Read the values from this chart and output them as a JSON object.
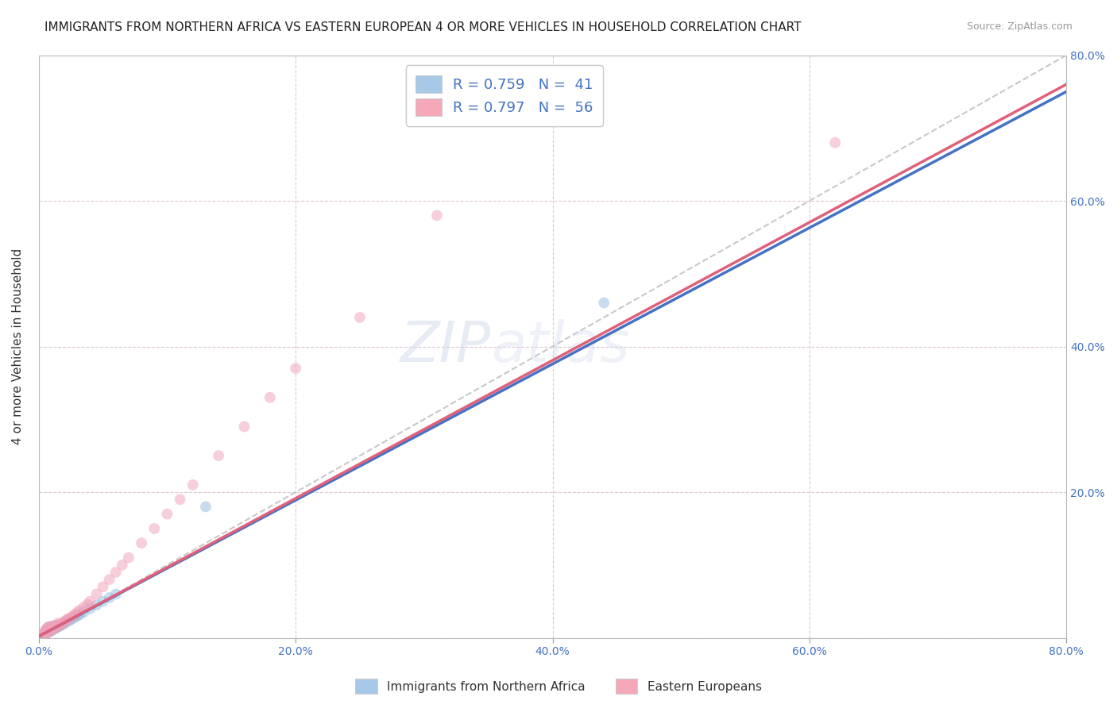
{
  "title": "IMMIGRANTS FROM NORTHERN AFRICA VS EASTERN EUROPEAN 4 OR MORE VEHICLES IN HOUSEHOLD CORRELATION CHART",
  "source": "Source: ZipAtlas.com",
  "ylabel": "4 or more Vehicles in Household",
  "xlim": [
    0.0,
    0.8
  ],
  "ylim": [
    0.0,
    0.8
  ],
  "xticks": [
    0.0,
    0.2,
    0.4,
    0.6,
    0.8
  ],
  "yticks": [
    0.0,
    0.2,
    0.4,
    0.6,
    0.8
  ],
  "xticklabels": [
    "0.0%",
    "20.0%",
    "40.0%",
    "60.0%",
    "80.0%"
  ],
  "yticklabels_right": [
    "",
    "20.0%",
    "40.0%",
    "60.0%",
    "80.0%"
  ],
  "watermark_part1": "ZIP",
  "watermark_part2": "atlas",
  "blue_scatter_x": [
    0.002,
    0.003,
    0.004,
    0.005,
    0.005,
    0.006,
    0.006,
    0.007,
    0.007,
    0.008,
    0.008,
    0.009,
    0.01,
    0.01,
    0.011,
    0.012,
    0.012,
    0.013,
    0.013,
    0.014,
    0.015,
    0.015,
    0.016,
    0.017,
    0.018,
    0.019,
    0.02,
    0.022,
    0.024,
    0.026,
    0.028,
    0.03,
    0.032,
    0.035,
    0.04,
    0.045,
    0.05,
    0.055,
    0.06,
    0.13,
    0.44
  ],
  "blue_scatter_y": [
    0.002,
    0.004,
    0.003,
    0.005,
    0.008,
    0.006,
    0.01,
    0.007,
    0.012,
    0.008,
    0.015,
    0.009,
    0.01,
    0.013,
    0.011,
    0.012,
    0.015,
    0.013,
    0.016,
    0.014,
    0.015,
    0.018,
    0.016,
    0.017,
    0.018,
    0.019,
    0.02,
    0.022,
    0.024,
    0.026,
    0.028,
    0.03,
    0.032,
    0.035,
    0.04,
    0.045,
    0.05,
    0.055,
    0.06,
    0.18,
    0.46
  ],
  "pink_scatter_x": [
    0.001,
    0.002,
    0.003,
    0.004,
    0.005,
    0.005,
    0.006,
    0.006,
    0.007,
    0.007,
    0.008,
    0.008,
    0.009,
    0.01,
    0.01,
    0.011,
    0.012,
    0.012,
    0.013,
    0.014,
    0.015,
    0.015,
    0.016,
    0.017,
    0.018,
    0.019,
    0.02,
    0.021,
    0.022,
    0.023,
    0.025,
    0.027,
    0.028,
    0.03,
    0.032,
    0.035,
    0.038,
    0.04,
    0.045,
    0.05,
    0.055,
    0.06,
    0.065,
    0.07,
    0.08,
    0.09,
    0.1,
    0.11,
    0.12,
    0.14,
    0.16,
    0.18,
    0.2,
    0.25,
    0.31,
    0.62
  ],
  "pink_scatter_y": [
    0.002,
    0.003,
    0.004,
    0.005,
    0.007,
    0.01,
    0.006,
    0.012,
    0.008,
    0.014,
    0.009,
    0.015,
    0.01,
    0.011,
    0.016,
    0.012,
    0.013,
    0.017,
    0.014,
    0.015,
    0.016,
    0.02,
    0.017,
    0.018,
    0.019,
    0.021,
    0.022,
    0.023,
    0.025,
    0.026,
    0.028,
    0.03,
    0.032,
    0.035,
    0.038,
    0.042,
    0.046,
    0.05,
    0.06,
    0.07,
    0.08,
    0.09,
    0.1,
    0.11,
    0.13,
    0.15,
    0.17,
    0.19,
    0.21,
    0.25,
    0.29,
    0.33,
    0.37,
    0.44,
    0.58,
    0.68
  ],
  "blue_line_x": [
    0.0,
    0.8
  ],
  "blue_line_y": [
    0.002,
    0.75
  ],
  "pink_line_x": [
    0.0,
    0.8
  ],
  "pink_line_y": [
    0.002,
    0.76
  ],
  "ref_line_x": [
    0.0,
    0.8
  ],
  "ref_line_y": [
    0.0,
    0.8
  ],
  "scatter_size": 100,
  "scatter_alpha": 0.5,
  "blue_color": "#90bde0",
  "pink_color": "#f0a0b8",
  "blue_line_color": "#4472c4",
  "pink_line_color": "#e0607a",
  "ref_line_color": "#c8c8c8",
  "grid_color": "#ddc8d4",
  "title_fontsize": 11,
  "axis_label_fontsize": 11,
  "tick_fontsize": 10,
  "legend_fontsize": 13,
  "background_color": "#ffffff",
  "legend_label_1": "R = 0.759   N =  41",
  "legend_label_2": "R = 0.797   N =  56",
  "legend_color_1": "#a8c8e8",
  "legend_color_2": "#f4a8b8",
  "bottom_legend_1": "Immigrants from Northern Africa",
  "bottom_legend_2": "Eastern Europeans"
}
